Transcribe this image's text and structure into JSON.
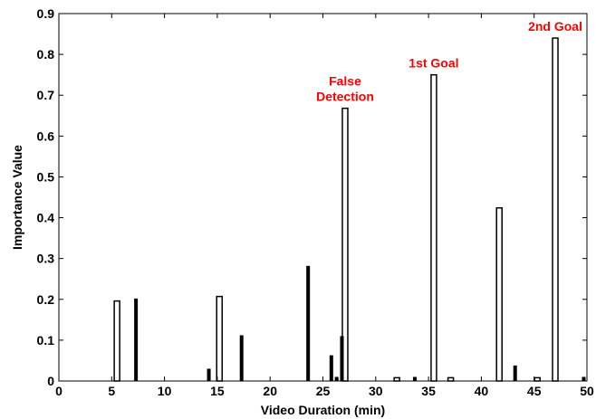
{
  "chart_data": {
    "type": "bar",
    "title": "",
    "xlabel": "Video Duration (min)",
    "ylabel": "Importance Value",
    "xlim": [
      0,
      50
    ],
    "ylim": [
      0,
      0.9
    ],
    "xticks": [
      "0",
      "5",
      "10",
      "15",
      "20",
      "25",
      "30",
      "35",
      "40",
      "45",
      "50"
    ],
    "yticks": [
      "0",
      "0.1",
      "0.2",
      "0.3",
      "0.4",
      "0.5",
      "0.6",
      "0.7",
      "0.8",
      "0.9"
    ],
    "grid": false,
    "series": [
      {
        "style": "hollow",
        "x": [
          5.5,
          15.2,
          27.1,
          32.0,
          35.5,
          37.1,
          41.7,
          45.3,
          47.0
        ],
        "values": [
          0.196,
          0.207,
          0.668,
          0.008,
          0.75,
          0.008,
          0.424,
          0.008,
          0.84
        ]
      },
      {
        "style": "filled",
        "x": [
          7.3,
          14.2,
          17.3,
          23.6,
          25.8,
          26.3,
          26.8,
          33.7,
          43.2,
          49.7
        ],
        "values": [
          0.202,
          0.03,
          0.112,
          0.282,
          0.063,
          0.01,
          0.11,
          0.01,
          0.038,
          0.01
        ]
      }
    ],
    "annotations": [
      {
        "lines": [
          "False",
          "Detection"
        ],
        "x": 27.1,
        "color": "#ff0000"
      },
      {
        "lines": [
          "1st Goal"
        ],
        "x": 35.5,
        "color": "#ff0000"
      },
      {
        "lines": [
          "2nd Goal"
        ],
        "x": 47.0,
        "color": "#ff0000"
      }
    ],
    "colors": {
      "bars": "#000000",
      "annotation": "#ff0000",
      "background": "#ffffff"
    }
  }
}
